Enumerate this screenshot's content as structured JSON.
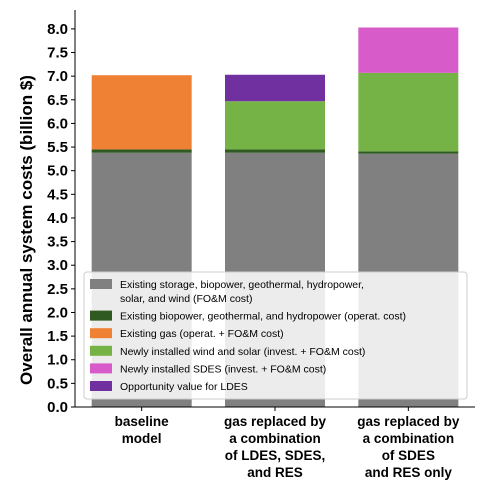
{
  "chart_data": {
    "type": "bar",
    "stacked": true,
    "ylabel": "Overall annual system costs (billion $)",
    "xlabel": "",
    "ylim": [
      0,
      8.4
    ],
    "yticks": [
      "0.0",
      "0.5",
      "1.0",
      "1.5",
      "2.0",
      "2.5",
      "3.0",
      "3.5",
      "4.0",
      "4.5",
      "5.0",
      "5.5",
      "6.0",
      "6.5",
      "7.0",
      "7.5",
      "8.0"
    ],
    "categories": [
      [
        "baseline",
        "model"
      ],
      [
        "gas replaced by",
        "a combination",
        "of LDES, SDES,",
        "and RES"
      ],
      [
        "gas replaced by",
        "a combination",
        "of SDES",
        "and RES only"
      ]
    ],
    "series": [
      {
        "name": [
          "Existing storage, biopower, geothermal, hydropower,",
          "solar, and wind (FO&M cost)"
        ],
        "color": "#808080",
        "values": [
          5.38,
          5.38,
          5.36
        ]
      },
      {
        "name": [
          "Existing biopower, geothermal, and hydropower (operat. cost)"
        ],
        "color": "#2f5a22",
        "values": [
          0.07,
          0.07,
          0.05
        ]
      },
      {
        "name": [
          "Existing gas (operat. + FO&M cost)"
        ],
        "color": "#ee8133",
        "values": [
          1.57,
          0.0,
          0.0
        ]
      },
      {
        "name": [
          "Newly installed wind and solar (invest. + FO&M cost)"
        ],
        "color": "#76b346",
        "values": [
          0.0,
          1.02,
          1.66
        ]
      },
      {
        "name": [
          "Newly installed SDES (invest. + FO&M cost)"
        ],
        "color": "#d75bc8",
        "values": [
          0.0,
          0.0,
          0.96
        ]
      },
      {
        "name": [
          "Opportunity value for LDES"
        ],
        "color": "#7030a0",
        "values": [
          0.0,
          0.56,
          0.0
        ]
      }
    ],
    "legend_position": "lower-center",
    "grid": false
  }
}
